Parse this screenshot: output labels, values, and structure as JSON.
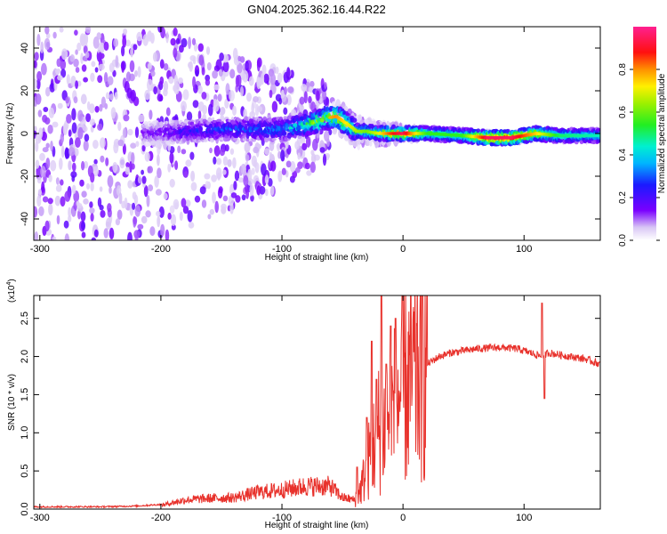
{
  "figure_title": "GN04.2025.362.16.44.R22",
  "chart_data": [
    {
      "type": "heatmap",
      "title": "GN04.2025.362.16.44.R22",
      "xlabel": "Height of straight line (km)",
      "ylabel": "Frequency (Hz)",
      "xlim": [
        -305,
        163
      ],
      "ylim": [
        -50,
        50
      ],
      "xticks": [
        -300,
        -200,
        -100,
        0,
        100
      ],
      "xtick_labels": [
        "-300",
        "-200",
        "-100",
        "0",
        "100"
      ],
      "yticks": [
        -40,
        -20,
        0,
        20,
        40
      ],
      "ytick_labels": [
        "-40",
        "-20",
        "0",
        "20",
        "40"
      ],
      "colorbar": {
        "label": "Normalized spectral amplitude",
        "range": [
          0,
          1
        ],
        "ticks": [
          0.0,
          0.2,
          0.4,
          0.6,
          0.8
        ],
        "tick_labels": [
          "0.0",
          "0.2",
          "0.4",
          "0.6",
          "0.8"
        ]
      },
      "ridge": {
        "x": [
          -210,
          -180,
          -150,
          -120,
          -100,
          -80,
          -65,
          -55,
          -45,
          -38,
          -30,
          -20,
          -10,
          0,
          20,
          50,
          70,
          90,
          110,
          130,
          163
        ],
        "frequency_hz": [
          0,
          1,
          2,
          2,
          2,
          4,
          7,
          8,
          4,
          1,
          1,
          0,
          0,
          0,
          0,
          -1,
          -2,
          -2,
          0,
          -1,
          -1
        ],
        "peak_amplitude": [
          0.15,
          0.25,
          0.3,
          0.35,
          0.4,
          0.55,
          0.75,
          0.8,
          0.7,
          0.65,
          0.6,
          0.7,
          0.85,
          0.95,
          0.55,
          0.55,
          0.95,
          0.95,
          0.75,
          0.5,
          0.45
        ]
      },
      "grid": false
    },
    {
      "type": "line",
      "xlabel": "Height of straight line (km)",
      "ylabel": "SNR (10 * v/v)",
      "y_multiplier_label": "(x10",
      "y_multiplier_exp": "4",
      "y_multiplier_close": ")",
      "xlim": [
        -305,
        163
      ],
      "ylim": [
        0,
        2.8
      ],
      "xticks": [
        -300,
        -200,
        -100,
        0,
        100
      ],
      "xtick_labels": [
        "-300",
        "-200",
        "-100",
        "0",
        "100"
      ],
      "yticks": [
        0.0,
        0.5,
        1.0,
        1.5,
        2.0,
        2.5
      ],
      "ytick_labels": [
        "0.0",
        "0.5",
        "1.0",
        "1.5",
        "2.0",
        "2.5"
      ],
      "series": [
        {
          "name": "SNR",
          "color": "#e8312b",
          "x": [
            -305,
            -250,
            -220,
            -200,
            -180,
            -160,
            -140,
            -120,
            -100,
            -80,
            -60,
            -50,
            -40,
            -35,
            -30,
            -25,
            -20,
            -15,
            -10,
            -5,
            0,
            10,
            20,
            30,
            40,
            60,
            80,
            95,
            105,
            115,
            120,
            130,
            150,
            163
          ],
          "y": [
            0.02,
            0.02,
            0.03,
            0.05,
            0.12,
            0.14,
            0.15,
            0.22,
            0.25,
            0.3,
            0.3,
            0.15,
            0.12,
            0.25,
            0.55,
            0.8,
            1.05,
            1.1,
            1.25,
            1.4,
            1.6,
            1.75,
            1.9,
            2.0,
            2.05,
            2.1,
            2.12,
            2.1,
            2.05,
            2.0,
            2.05,
            2.02,
            1.97,
            1.9
          ]
        }
      ],
      "spikes": [
        {
          "x": -38,
          "y": 0.55
        },
        {
          "x": -30,
          "y": 1.2
        },
        {
          "x": -26,
          "y": 2.2
        },
        {
          "x": -22,
          "y": 1.7
        },
        {
          "x": -18,
          "y": 2.8
        },
        {
          "x": -14,
          "y": 1.9
        },
        {
          "x": -10,
          "y": 2.4
        },
        {
          "x": -6,
          "y": 2.5
        },
        {
          "x": 115,
          "y": 2.7
        },
        {
          "x": 117,
          "y": 1.45
        }
      ],
      "grid": false
    }
  ]
}
